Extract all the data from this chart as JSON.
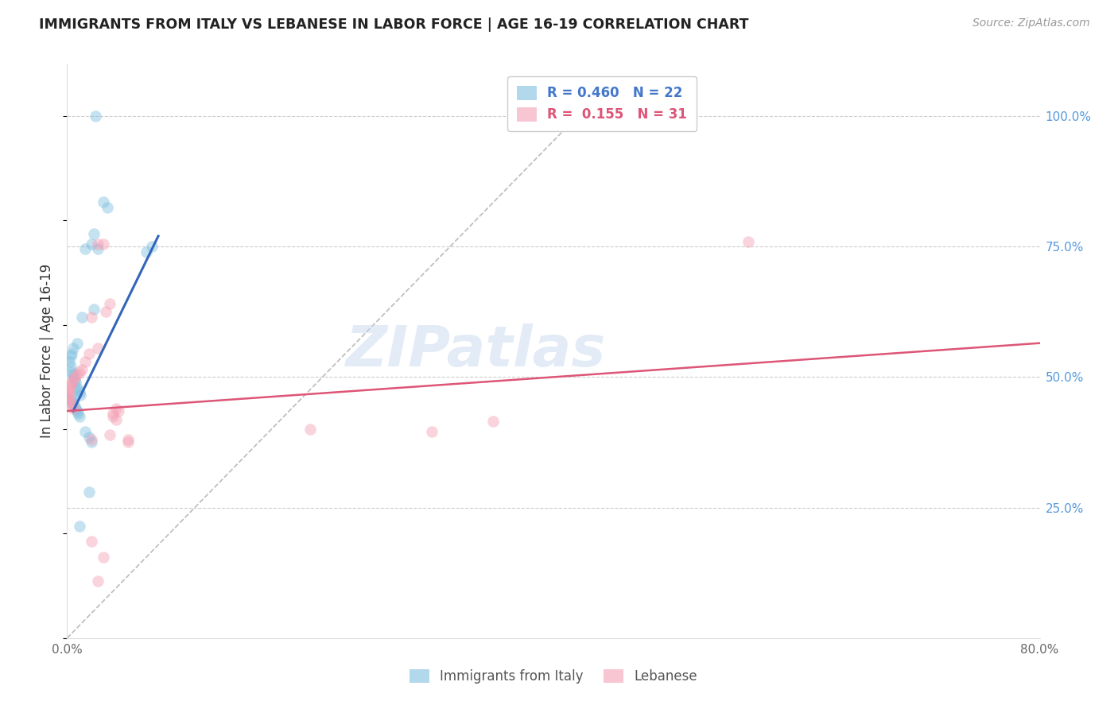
{
  "title": "IMMIGRANTS FROM ITALY VS LEBANESE IN LABOR FORCE | AGE 16-19 CORRELATION CHART",
  "source": "Source: ZipAtlas.com",
  "ylabel": "In Labor Force | Age 16-19",
  "xlim": [
    0.0,
    0.8
  ],
  "ylim": [
    0.0,
    1.1
  ],
  "x_ticks": [
    0.0,
    0.1,
    0.2,
    0.3,
    0.4,
    0.5,
    0.6,
    0.7,
    0.8
  ],
  "x_tick_labels": [
    "0.0%",
    "",
    "",
    "",
    "",
    "",
    "",
    "",
    "80.0%"
  ],
  "y_ticks_right": [
    0.0,
    0.25,
    0.5,
    0.75,
    1.0
  ],
  "y_tick_labels_right": [
    "",
    "25.0%",
    "50.0%",
    "75.0%",
    "100.0%"
  ],
  "bottom_legend": [
    "Immigrants from Italy",
    "Lebanese"
  ],
  "italy_color": "#7fbfdf",
  "leb_color": "#f4a0b5",
  "italy_line_color": "#3366bb",
  "leb_line_color": "#dd5577",
  "diag_color": "#bbbbbb",
  "watermark": "ZIPatlas",
  "italy_line_x": [
    0.005,
    0.075
  ],
  "italy_line_y": [
    0.435,
    0.77
  ],
  "leb_line_x": [
    0.0,
    0.8
  ],
  "leb_line_y": [
    0.435,
    0.565
  ],
  "diag_line_x": [
    0.0,
    0.42
  ],
  "diag_line_y": [
    0.0,
    1.0
  ],
  "italy_scatter": [
    [
      0.023,
      1.0
    ],
    [
      0.03,
      0.835
    ],
    [
      0.033,
      0.825
    ],
    [
      0.022,
      0.775
    ],
    [
      0.07,
      0.75
    ],
    [
      0.025,
      0.745
    ],
    [
      0.02,
      0.755
    ],
    [
      0.015,
      0.745
    ],
    [
      0.065,
      0.74
    ],
    [
      0.022,
      0.63
    ],
    [
      0.012,
      0.615
    ],
    [
      0.008,
      0.565
    ],
    [
      0.005,
      0.555
    ],
    [
      0.004,
      0.545
    ],
    [
      0.003,
      0.54
    ],
    [
      0.002,
      0.53
    ],
    [
      0.003,
      0.52
    ],
    [
      0.004,
      0.51
    ],
    [
      0.005,
      0.505
    ],
    [
      0.005,
      0.5
    ],
    [
      0.006,
      0.495
    ],
    [
      0.007,
      0.49
    ],
    [
      0.008,
      0.48
    ],
    [
      0.009,
      0.475
    ],
    [
      0.01,
      0.47
    ],
    [
      0.011,
      0.465
    ],
    [
      0.003,
      0.46
    ],
    [
      0.004,
      0.455
    ],
    [
      0.005,
      0.45
    ],
    [
      0.006,
      0.445
    ],
    [
      0.007,
      0.44
    ],
    [
      0.008,
      0.435
    ],
    [
      0.009,
      0.43
    ],
    [
      0.01,
      0.425
    ],
    [
      0.015,
      0.395
    ],
    [
      0.018,
      0.385
    ],
    [
      0.02,
      0.375
    ],
    [
      0.018,
      0.28
    ],
    [
      0.01,
      0.215
    ]
  ],
  "leb_scatter": [
    [
      0.56,
      0.76
    ],
    [
      0.03,
      0.755
    ],
    [
      0.025,
      0.755
    ],
    [
      0.035,
      0.64
    ],
    [
      0.032,
      0.625
    ],
    [
      0.02,
      0.615
    ],
    [
      0.025,
      0.555
    ],
    [
      0.018,
      0.545
    ],
    [
      0.015,
      0.53
    ],
    [
      0.012,
      0.515
    ],
    [
      0.01,
      0.51
    ],
    [
      0.008,
      0.505
    ],
    [
      0.006,
      0.5
    ],
    [
      0.005,
      0.495
    ],
    [
      0.004,
      0.49
    ],
    [
      0.003,
      0.485
    ],
    [
      0.002,
      0.48
    ],
    [
      0.002,
      0.475
    ],
    [
      0.001,
      0.47
    ],
    [
      0.001,
      0.465
    ],
    [
      0.001,
      0.46
    ],
    [
      0.002,
      0.455
    ],
    [
      0.003,
      0.45
    ],
    [
      0.004,
      0.445
    ],
    [
      0.005,
      0.44
    ],
    [
      0.04,
      0.44
    ],
    [
      0.042,
      0.435
    ],
    [
      0.038,
      0.43
    ],
    [
      0.038,
      0.425
    ],
    [
      0.04,
      0.418
    ],
    [
      0.2,
      0.4
    ],
    [
      0.3,
      0.395
    ],
    [
      0.35,
      0.415
    ],
    [
      0.02,
      0.38
    ],
    [
      0.035,
      0.39
    ],
    [
      0.05,
      0.38
    ],
    [
      0.05,
      0.375
    ],
    [
      0.02,
      0.185
    ],
    [
      0.03,
      0.155
    ],
    [
      0.025,
      0.11
    ]
  ]
}
